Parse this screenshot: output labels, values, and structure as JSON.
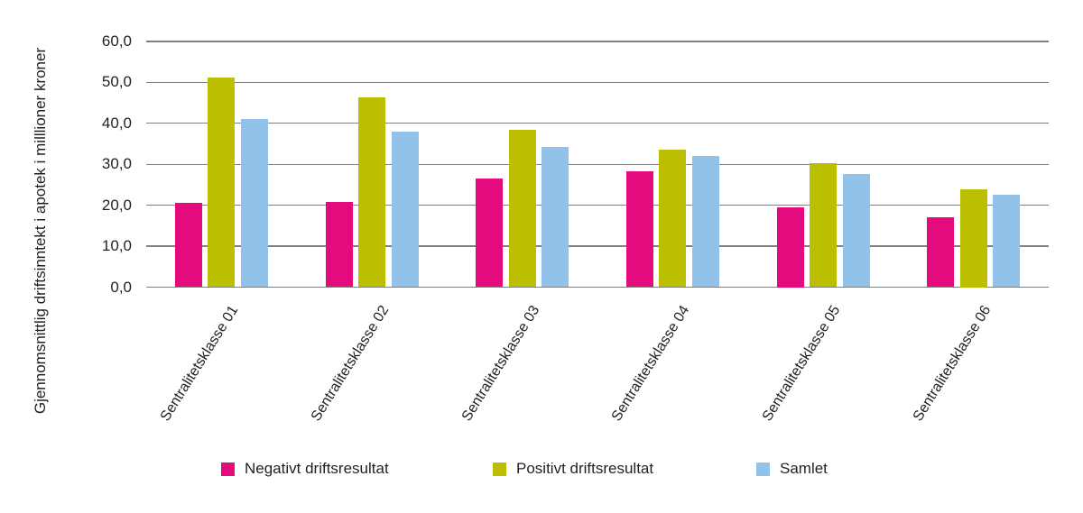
{
  "chart_data": {
    "type": "bar",
    "title": "",
    "xlabel": "",
    "ylabel": "Gjennomsnittlig driftsinntekt i apotek i milllioner kroner",
    "categories": [
      "Sentralitetsklasse 01",
      "Sentralitetsklasse 02",
      "Sentralitetsklasse 03",
      "Sentralitetsklasse 04",
      "Sentralitetsklasse 05",
      "Sentralitetsklasse 06"
    ],
    "series": [
      {
        "name": "Negativt driftsresultat",
        "color": "#e30b7d",
        "values": [
          20.5,
          20.8,
          26.5,
          28.3,
          19.5,
          17.0
        ]
      },
      {
        "name": "Positivt driftsresultat",
        "color": "#bcbf00",
        "values": [
          51.3,
          46.3,
          38.4,
          33.5,
          30.2,
          24.0
        ]
      },
      {
        "name": "Samlet",
        "color": "#92c1e9",
        "values": [
          41.0,
          38.0,
          34.2,
          32.0,
          27.6,
          22.6
        ]
      }
    ],
    "ylim": [
      0,
      60
    ],
    "ytick_step": 10,
    "ytick_labels": [
      "0,0",
      "10,0",
      "20,0",
      "30,0",
      "40,0",
      "50,0",
      "60,0"
    ],
    "grid": true,
    "legend_position": "bottom",
    "colors": {
      "grid": "#808080",
      "text": "#231f20",
      "background": "#ffffff"
    }
  }
}
